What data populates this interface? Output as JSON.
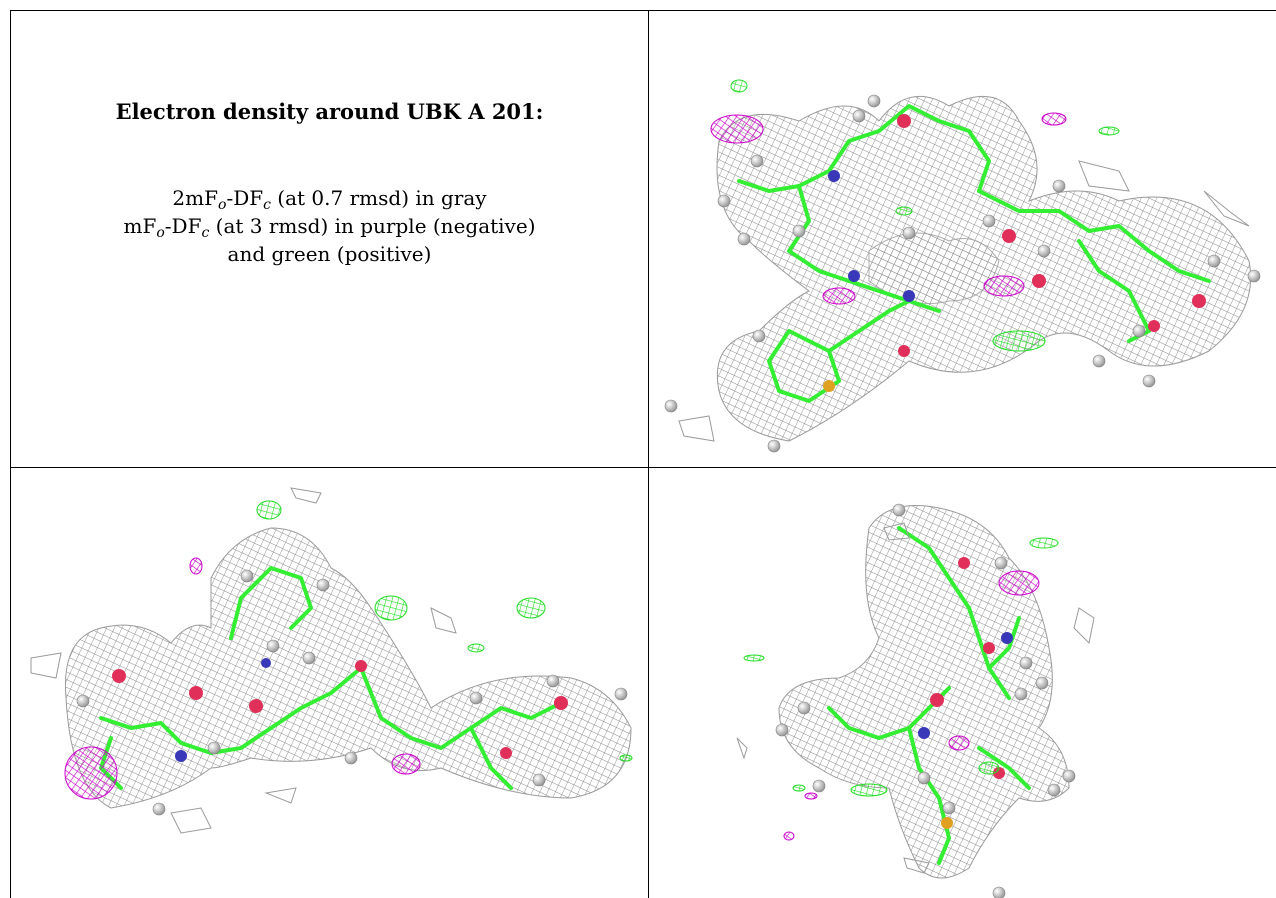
{
  "caption": {
    "title": "Electron density around UBK A 201:",
    "line1": {
      "pre": "2mF",
      "sub1": "o",
      "mid": "-DF",
      "sub2": "c",
      "post": " (at 0.7 rmsd) in gray"
    },
    "line2": {
      "pre": "mF",
      "sub1": "o",
      "mid": "-DF",
      "sub2": "c",
      "post": " (at 3 rmsd) in purple (negative)"
    },
    "line3": "and green (positive)"
  },
  "colors": {
    "mesh_gray": "#8c8c8c",
    "bond_green": "#33ee33",
    "negative_purple": "#cc00cc",
    "oxygen_red": "#e0305a",
    "nitrogen_blue": "#3838b8",
    "sulfur_yellow": "#e0a020",
    "hydrogen_white": "#e6e6e6"
  },
  "panels": [
    {
      "name": "view-top-right"
    },
    {
      "name": "view-bottom-left"
    },
    {
      "name": "view-bottom-right"
    }
  ]
}
